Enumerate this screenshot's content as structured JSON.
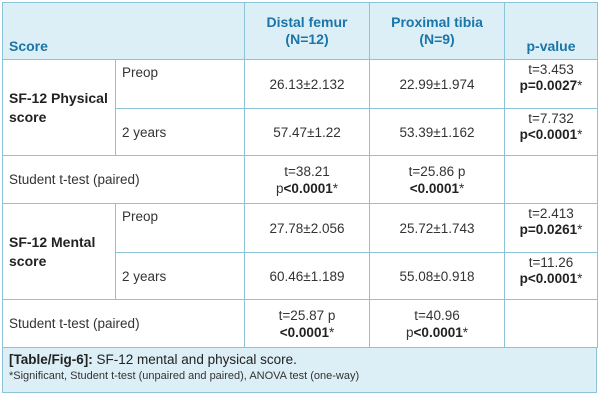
{
  "header": {
    "score": "Score",
    "distal_femur": "Distal femur",
    "distal_femur_n": "(N=12)",
    "proximal_tibia": "Proximal tibia",
    "proximal_tibia_n": "(N=9)",
    "p_value": "p-value"
  },
  "sf12_physical": {
    "label": "SF-12 Physical score",
    "preop": {
      "period": "Preop",
      "distal_femur": "26.13±2.132",
      "proximal_tibia": "22.99±1.974",
      "t": "t=3.453",
      "p": "p=0.0027",
      "mark": "*"
    },
    "two_years": {
      "period": "2 years",
      "distal_femur": "57.47±1.22",
      "proximal_tibia": "53.39±1.162",
      "t": "t=7.732",
      "p": "p<0.0001",
      "mark": "*"
    },
    "student": {
      "label": "Student t-test (paired)",
      "df_line1": "t=38.21",
      "df_line2_p": "p",
      "df_line2_val": "<0.0001",
      "df_mark": "*",
      "pt_line1": "t=25.86 p",
      "pt_line2_val": "<0.0001",
      "pt_mark": "*"
    }
  },
  "sf12_mental": {
    "label": "SF-12 Mental score",
    "preop": {
      "period": "Preop",
      "distal_femur": "27.78±2.056",
      "proximal_tibia": "25.72±1.743",
      "t": "t=2.413",
      "p": "p=0.0261",
      "mark": "*"
    },
    "two_years": {
      "period": "2 years",
      "distal_femur": "60.46±1.189",
      "proximal_tibia": "55.08±0.918",
      "t": "t=11.26",
      "p": "p<0.0001",
      "mark": "*"
    },
    "student": {
      "label": "Student t-test (paired)",
      "df_line1": "t=25.87 p",
      "df_line2_val": "<0.0001",
      "df_mark": "*",
      "pt_line1": "t=40.96",
      "pt_line2_p": "p",
      "pt_line2_val": "<0.0001",
      "pt_mark": "*"
    }
  },
  "caption": {
    "tag": "[Table/Fig-6]:",
    "title": "SF-12 mental and physical score.",
    "footnote": "*Significant, Student t-test (unpaired and paired), ANOVA test (one-way)"
  }
}
